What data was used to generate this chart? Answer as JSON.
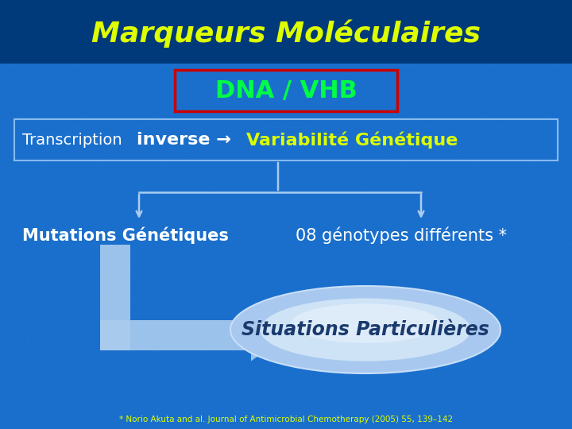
{
  "bg_color": "#1a6fcc",
  "bg_color2": "#1060bb",
  "title_bar_color": "#003a7a",
  "title_text": "Marqueurs Moléculaires",
  "title_color": "#ddff00",
  "dna_box_text": "DNA / VHB",
  "dna_box_color": "#00ff44",
  "dna_box_border": "#cc0000",
  "transcription_box_border": "#88bbee",
  "mutations_text": "Mutations Génétiques",
  "genotypes_text": "08 génotypes différents *",
  "situations_text": "Situations Particulières",
  "arrow_color": "#aaccee",
  "footer_text": "* Norio Akuta and al. Journal of Antimicrobial Chemotherapy (2005) 55, 139–142",
  "white_text": "#ffffff",
  "yellow_text": "#ddff00",
  "situations_dark_blue": "#1a3a6e"
}
